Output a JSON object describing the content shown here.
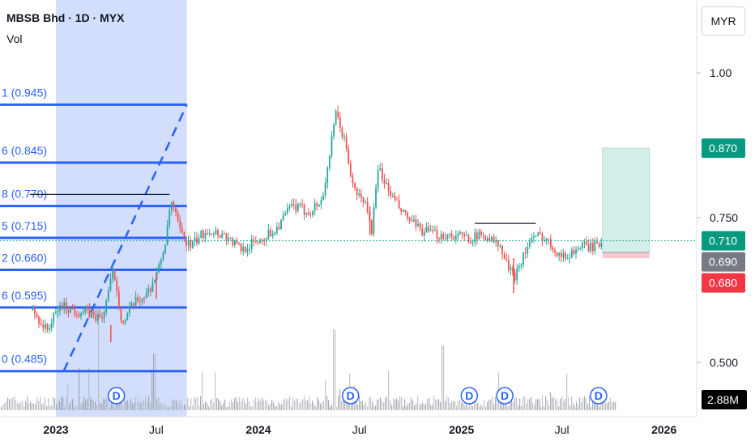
{
  "header": {
    "title": "MBSB Bhd · 1D · MYX",
    "volume_label": "Vol",
    "currency": "MYR"
  },
  "colors": {
    "up": "#26a69a",
    "down": "#ef5350",
    "fib_line": "#2962ff",
    "fib_zone": "#d2defc",
    "label_blue": "#2962ff",
    "current": "#26a69a"
  },
  "chart_data": {
    "type": "candlestick",
    "symbol": "MBSB Bhd",
    "interval": "1D",
    "exchange": "MYX",
    "x_tick_labels": [
      "2023",
      "Jul",
      "2024",
      "Jul",
      "2025",
      "Jul",
      "2026"
    ],
    "y_tick_labels": [
      "1.00",
      "0.750",
      "0.500"
    ],
    "y_range": [
      0.43,
      1.07
    ],
    "price_series": [
      [
        "2022-11-20",
        0.59
      ],
      [
        "2022-12-15",
        0.555
      ],
      [
        "2023-01-10",
        0.6
      ],
      [
        "2023-02-01",
        0.59
      ],
      [
        "2023-03-01",
        0.585
      ],
      [
        "2023-03-25",
        0.575
      ],
      [
        "2023-04-15",
        0.66
      ],
      [
        "2023-05-01",
        0.565
      ],
      [
        "2023-05-20",
        0.6
      ],
      [
        "2023-06-15",
        0.62
      ],
      [
        "2023-07-05",
        0.66
      ],
      [
        "2023-07-20",
        0.72
      ],
      [
        "2023-07-27",
        0.78
      ],
      [
        "2023-08-15",
        0.72
      ],
      [
        "2023-09-01",
        0.7
      ],
      [
        "2023-10-01",
        0.73
      ],
      [
        "2023-11-01",
        0.72
      ],
      [
        "2023-12-01",
        0.695
      ],
      [
        "2024-01-01",
        0.71
      ],
      [
        "2024-02-01",
        0.73
      ],
      [
        "2024-03-01",
        0.77
      ],
      [
        "2024-04-01",
        0.76
      ],
      [
        "2024-04-25",
        0.78
      ],
      [
        "2024-05-10",
        0.87
      ],
      [
        "2024-05-20",
        0.93
      ],
      [
        "2024-06-05",
        0.88
      ],
      [
        "2024-06-20",
        0.8
      ],
      [
        "2024-07-15",
        0.77
      ],
      [
        "2024-07-22",
        0.72
      ],
      [
        "2024-08-05",
        0.84
      ],
      [
        "2024-08-20",
        0.8
      ],
      [
        "2024-09-15",
        0.76
      ],
      [
        "2024-10-15",
        0.73
      ],
      [
        "2024-11-15",
        0.72
      ],
      [
        "2024-12-15",
        0.72
      ],
      [
        "2025-01-15",
        0.715
      ],
      [
        "2025-02-15",
        0.72
      ],
      [
        "2025-03-10",
        0.7
      ],
      [
        "2025-04-05",
        0.645
      ],
      [
        "2025-04-15",
        0.67
      ],
      [
        "2025-05-05",
        0.71
      ],
      [
        "2025-05-25",
        0.72
      ],
      [
        "2025-06-15",
        0.7
      ],
      [
        "2025-07-05",
        0.68
      ],
      [
        "2025-08-01",
        0.7
      ],
      [
        "2025-09-01",
        0.7
      ],
      [
        "2025-09-12",
        0.71
      ]
    ],
    "volume_peak_label": "2.88M",
    "current_price": {
      "value": 0.71,
      "label": "0.710"
    },
    "position_tool": {
      "target": {
        "value": 0.87,
        "label": "0.870"
      },
      "entry": {
        "value": 0.69,
        "label": "0.690"
      },
      "stop": {
        "value": 0.68,
        "label": "0.680"
      }
    },
    "fib_levels": [
      {
        "label": "1 (0.945)",
        "value": 0.945
      },
      {
        "label": "6 (0.845)",
        "value": 0.845
      },
      {
        "label": "8 (0.770)",
        "value": 0.77
      },
      {
        "label": "5 (0.715)",
        "value": 0.715
      },
      {
        "label": "2 (0.660)",
        "value": 0.66
      },
      {
        "label": "6 (0.595)",
        "value": 0.595
      },
      {
        "label": "0 (0.485)",
        "value": 0.485
      }
    ],
    "fib_trend": {
      "from": [
        "2023-01-15",
        0.485
      ],
      "to": [
        "2023-08-25",
        0.945
      ]
    },
    "resistance_lines": [
      {
        "from": "2022-11-15",
        "to": "2023-07-25",
        "value": 0.79
      },
      {
        "from": "2025-01-25",
        "to": "2025-05-15",
        "value": 0.74
      }
    ],
    "dividends": [
      {
        "date": "2023-04-20",
        "label": "D"
      },
      {
        "date": "2024-06-15",
        "label": "D"
      },
      {
        "date": "2025-01-15",
        "label": "D"
      },
      {
        "date": "2025-03-20",
        "label": "D"
      },
      {
        "date": "2025-09-05",
        "label": "D"
      }
    ]
  }
}
